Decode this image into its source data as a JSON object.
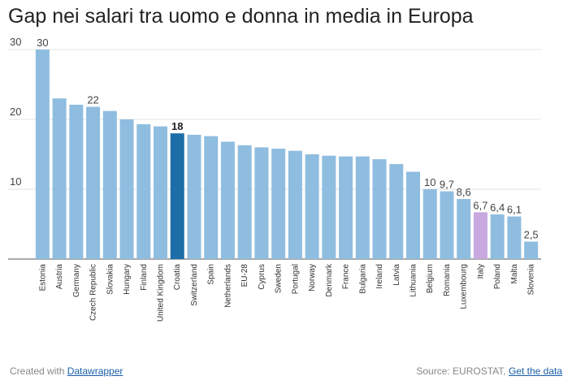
{
  "chart_data": {
    "type": "bar",
    "title": "Gap nei salari tra uomo e donna in media in Europa",
    "xlabel": "",
    "ylabel": "",
    "ylim": [
      0,
      30
    ],
    "yticks": [
      10,
      20,
      30
    ],
    "grid": true,
    "categories": [
      "Estonia",
      "Austria",
      "Germany",
      "Czech Republic",
      "Slovakia",
      "Hungary",
      "Finland",
      "United Kingdom",
      "Croatia",
      "Switzerland",
      "Spain",
      "Netherlands",
      "EU-28",
      "Cyprus",
      "Sweden",
      "Portugal",
      "Norway",
      "Denmark",
      "France",
      "Bulgaria",
      "Ireland",
      "Latvia",
      "Lithuania",
      "Belgium",
      "Romania",
      "Luxembourg",
      "Italy",
      "Poland",
      "Malta",
      "Slovenia"
    ],
    "values": [
      30,
      23,
      22.1,
      21.8,
      21.2,
      20,
      19.3,
      19,
      18,
      17.8,
      17.6,
      16.8,
      16.3,
      16,
      15.8,
      15.5,
      15,
      14.8,
      14.7,
      14.7,
      14.3,
      13.6,
      12.5,
      10,
      9.7,
      8.6,
      6.7,
      6.4,
      6.1,
      2.5
    ],
    "data_labels": {
      "0": "30",
      "3": "22",
      "8": "18",
      "23": "10",
      "24": "9,7",
      "25": "8,6",
      "26": "6,7",
      "27": "6,4",
      "28": "6,1",
      "29": "2,5"
    },
    "bold_labels": [
      8
    ],
    "colors": {
      "default": "#8fbde0",
      "highlight": "#1d6ea8",
      "italy": "#c9a8df"
    },
    "highlight_index": 8,
    "italy_index": 26
  },
  "footer": {
    "created_prefix": "Created with ",
    "created_link": "Datawrapper",
    "source_prefix": "Source: EUROSTAT, ",
    "source_link": "Get the data"
  }
}
